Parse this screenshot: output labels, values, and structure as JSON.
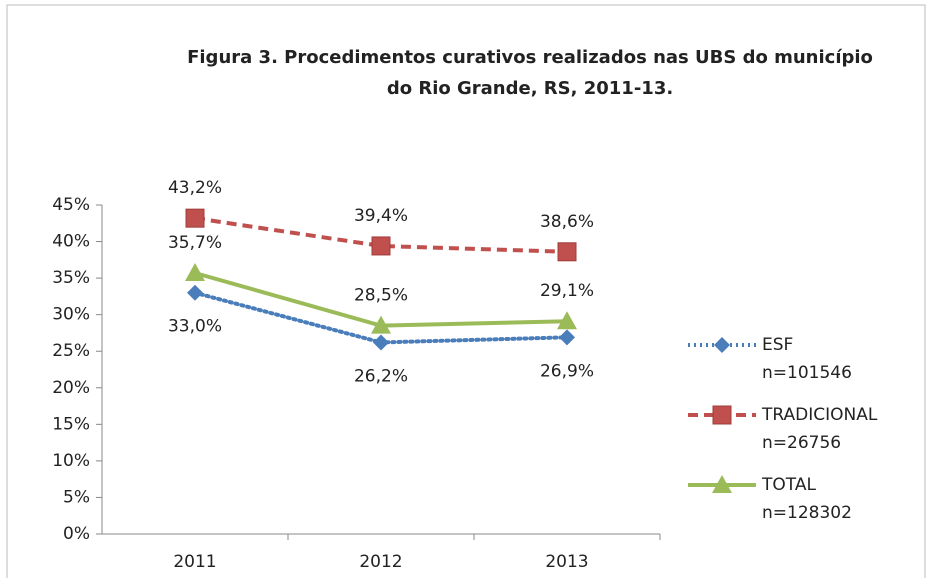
{
  "chart_data": {
    "type": "line",
    "title": [
      "Figura 3. Procedimentos curativos realizados nas UBS do município",
      "do Rio Grande, RS, 2011-13."
    ],
    "categories": [
      "2011",
      "2012",
      "2013"
    ],
    "series": [
      {
        "name": "ESF",
        "n_label": "n=101546",
        "color": "#4a7ebb",
        "dash": "dotted",
        "marker": "diamond",
        "label_position": "below",
        "values": [
          33.0,
          26.2,
          26.9
        ],
        "value_labels": [
          "33,0%",
          "26,2%",
          "26,9%"
        ]
      },
      {
        "name": "TRADICIONAL",
        "n_label": "n=26756",
        "color": "#c0504d",
        "dash": "dashed",
        "marker": "square",
        "label_position": "above",
        "values": [
          43.2,
          39.4,
          38.6
        ],
        "value_labels": [
          "43,2%",
          "39,4%",
          "38,6%"
        ]
      },
      {
        "name": "TOTAL",
        "n_label": "n=128302",
        "color": "#9bbb59",
        "dash": "solid",
        "marker": "triangle",
        "label_position": "above",
        "values": [
          35.7,
          28.5,
          29.1
        ],
        "value_labels": [
          "35,7%",
          "28,5%",
          "29,1%"
        ]
      }
    ],
    "ylim": [
      0,
      45
    ],
    "yticks": [
      {
        "value": 0,
        "label": "0%"
      },
      {
        "value": 5,
        "label": "5%"
      },
      {
        "value": 10,
        "label": "10%"
      },
      {
        "value": 15,
        "label": "15%"
      },
      {
        "value": 20,
        "label": "20%"
      },
      {
        "value": 25,
        "label": "25%"
      },
      {
        "value": 30,
        "label": "30%"
      },
      {
        "value": 35,
        "label": "35%"
      },
      {
        "value": 40,
        "label": "40%"
      },
      {
        "value": 45,
        "label": "45%"
      }
    ],
    "grid": false,
    "legend": "right"
  }
}
